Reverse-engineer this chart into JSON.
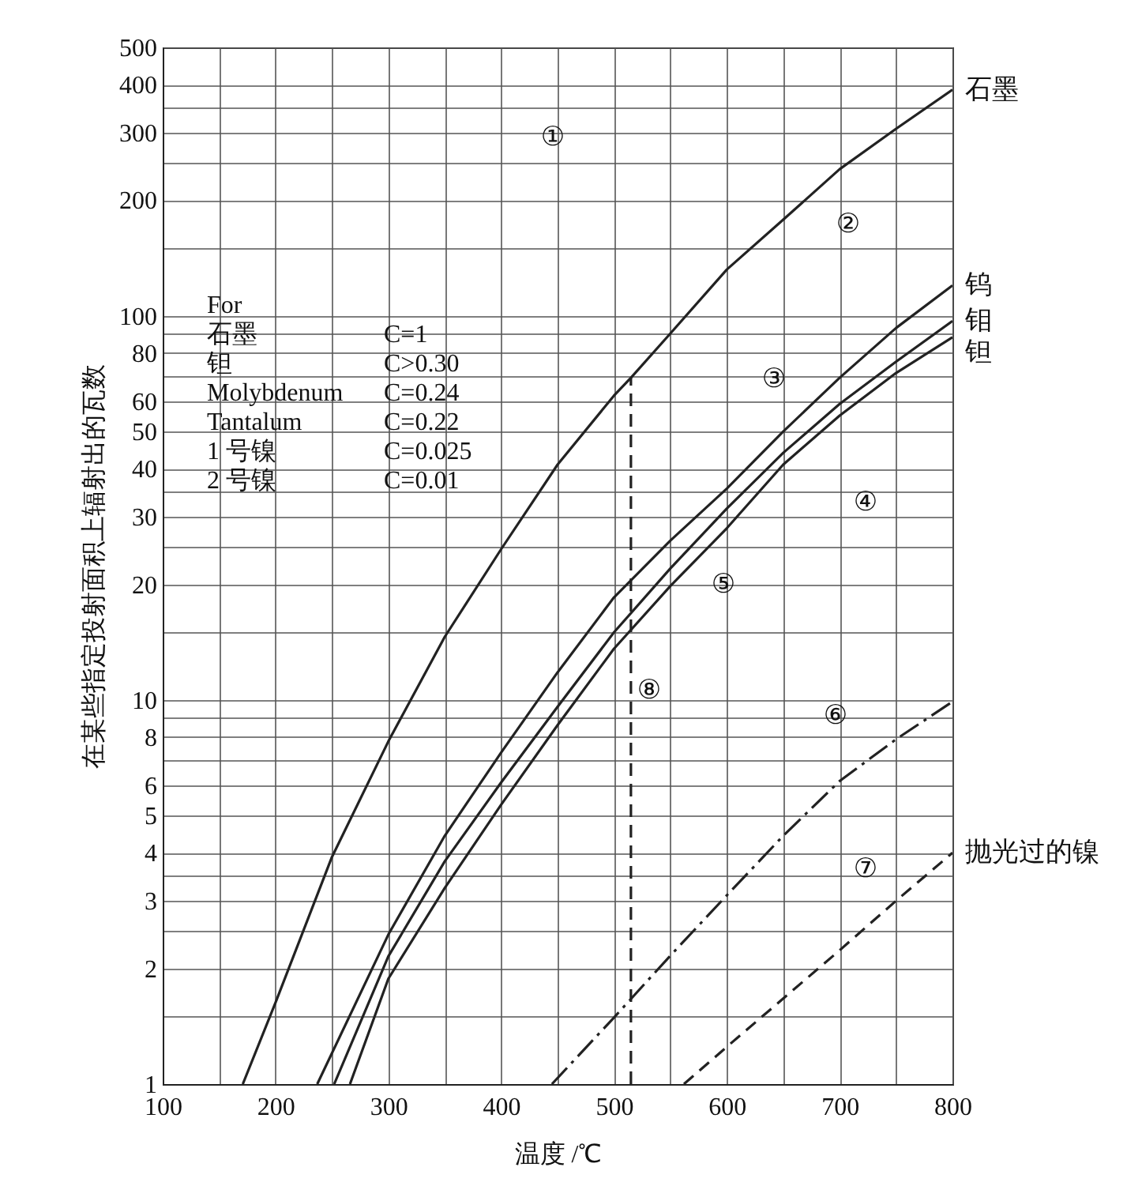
{
  "chart_data": {
    "type": "line",
    "xlabel": "温度 /℃",
    "ylabel": "在某些指定投射面积上辐射出的瓦数",
    "log": "y",
    "grid": true,
    "xlim": [
      100,
      800
    ],
    "ylim": [
      1,
      500
    ],
    "xticks": [
      100,
      {
        "value": 150,
        "label": null
      },
      200,
      {
        "value": 250,
        "label": null
      },
      300,
      {
        "value": 350,
        "label": null
      },
      400,
      {
        "value": 450,
        "label": null
      },
      500,
      {
        "value": 550,
        "label": null
      },
      600,
      {
        "value": 650,
        "label": null
      },
      700,
      {
        "value": 750,
        "label": null
      },
      800
    ],
    "yticks": [
      1,
      {
        "value": 1.5,
        "label": null
      },
      2,
      {
        "value": 2.5,
        "label": null
      },
      3,
      {
        "value": 3.5,
        "label": null
      },
      4,
      5,
      6,
      {
        "value": 7,
        "label": null
      },
      8,
      {
        "value": 9,
        "label": null
      },
      10,
      {
        "value": 15,
        "label": null
      },
      20,
      {
        "value": 25,
        "label": null
      },
      30,
      {
        "value": 35,
        "label": null
      },
      40,
      50,
      60,
      {
        "value": 70,
        "label": null
      },
      80,
      {
        "value": 90,
        "label": null
      },
      100,
      {
        "value": 150,
        "label": null
      },
      200,
      {
        "value": 250,
        "label": null
      },
      300,
      {
        "value": 350,
        "label": null
      },
      400,
      500
    ],
    "series": [
      {
        "name": "石墨",
        "color": "#222222",
        "line_style": "solid",
        "x": [
          171,
          200,
          250,
          300,
          350,
          400,
          450,
          500,
          515,
          550,
          600,
          650,
          700,
          750,
          800
        ],
        "values": [
          1,
          1.63,
          3.9,
          7.8,
          14.6,
          24.7,
          41,
          62,
          69,
          90,
          132,
          178,
          241,
          307,
          388
        ]
      },
      {
        "name": "钨",
        "color": "#222222",
        "line_style": "solid",
        "x": [
          237,
          300,
          350,
          400,
          450,
          500,
          550,
          600,
          650,
          700,
          750,
          800
        ],
        "values": [
          1,
          2.45,
          4.43,
          7.3,
          11.8,
          18.5,
          26,
          35.5,
          50,
          69,
          93,
          120
        ]
      },
      {
        "name": "钼",
        "color": "#222222",
        "line_style": "solid",
        "x": [
          252,
          300,
          350,
          400,
          450,
          500,
          550,
          600,
          650,
          700,
          750,
          800
        ],
        "values": [
          1,
          2.15,
          3.8,
          6.1,
          9.6,
          15,
          22,
          31.5,
          44,
          59,
          76,
          97
        ]
      },
      {
        "name": "钽",
        "color": "#222222",
        "line_style": "solid",
        "x": [
          266,
          300,
          350,
          400,
          450,
          500,
          550,
          600,
          650,
          700,
          750,
          800
        ],
        "values": [
          1,
          1.88,
          3.24,
          5.34,
          8.6,
          13.6,
          19.8,
          28,
          41,
          55,
          71,
          88
        ]
      },
      {
        "color": "#222222",
        "line_style": "dashdot",
        "x": [
          445,
          500,
          550,
          600,
          650,
          700,
          750,
          800
        ],
        "values": [
          1,
          1.49,
          2.16,
          3.1,
          4.43,
          6.15,
          7.9,
          9.9
        ]
      },
      {
        "name": "抛光过的镍",
        "color": "#222222",
        "line_style": "dashed",
        "x": [
          562,
          600,
          650,
          700,
          750,
          800
        ],
        "values": [
          1,
          1.25,
          1.67,
          2.23,
          3,
          4
        ]
      },
      {
        "color": "#222222",
        "line_style": "dashed",
        "x": [
          515,
          515
        ],
        "values": [
          1,
          69
        ]
      }
    ],
    "annotations": [
      "①",
      "②",
      "③",
      "④",
      "⑤",
      "⑥",
      "⑦",
      "⑧",
      "For",
      "石墨",
      "C=1",
      "钽",
      "C>0.30",
      "Molybdenum",
      "C=0.24",
      "Tantalum",
      "C=0.22",
      "1 号镍",
      "C=0.025",
      "2 号镍",
      "C=0.01"
    ]
  }
}
